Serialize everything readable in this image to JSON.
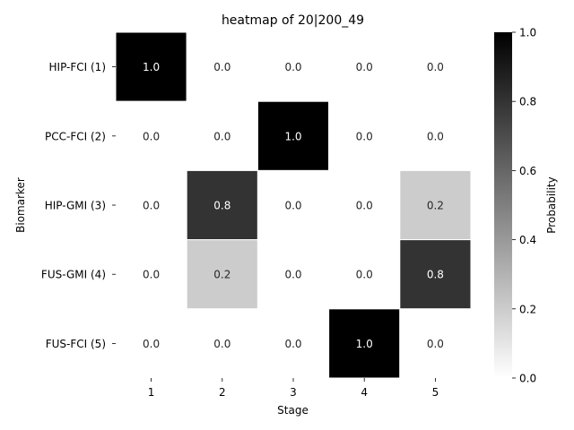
{
  "chart_data": {
    "type": "heatmap",
    "title": "heatmap of 20|200_49",
    "xlabel": "Stage",
    "ylabel": "Biomarker",
    "x_categories": [
      "1",
      "2",
      "3",
      "4",
      "5"
    ],
    "y_categories": [
      "HIP-FCI (1)",
      "PCC-FCI (2)",
      "HIP-GMI (3)",
      "FUS-GMI (4)",
      "FUS-FCI (5)"
    ],
    "values": [
      [
        1.0,
        0.0,
        0.0,
        0.0,
        0.0
      ],
      [
        0.0,
        0.0,
        1.0,
        0.0,
        0.0
      ],
      [
        0.0,
        0.8,
        0.0,
        0.0,
        0.2
      ],
      [
        0.0,
        0.2,
        0.0,
        0.0,
        0.8
      ],
      [
        0.0,
        0.0,
        0.0,
        1.0,
        0.0
      ]
    ],
    "cell_labels": [
      [
        "1.0",
        "0.0",
        "0.0",
        "0.0",
        "0.0"
      ],
      [
        "0.0",
        "0.0",
        "1.0",
        "0.0",
        "0.0"
      ],
      [
        "0.0",
        "0.8",
        "0.0",
        "0.0",
        "0.2"
      ],
      [
        "0.0",
        "0.2",
        "0.0",
        "0.0",
        "0.8"
      ],
      [
        "0.0",
        "0.0",
        "0.0",
        "1.0",
        "0.0"
      ]
    ],
    "colorbar": {
      "label": "Probability",
      "range": [
        0,
        1
      ],
      "ticks": [
        "0.0",
        "0.2",
        "0.4",
        "0.6",
        "0.8",
        "1.0"
      ],
      "tick_values": [
        0.0,
        0.2,
        0.4,
        0.6,
        0.8,
        1.0
      ],
      "colormap": "Greys",
      "low_color": "#ffffff",
      "high_color": "#000000"
    }
  }
}
